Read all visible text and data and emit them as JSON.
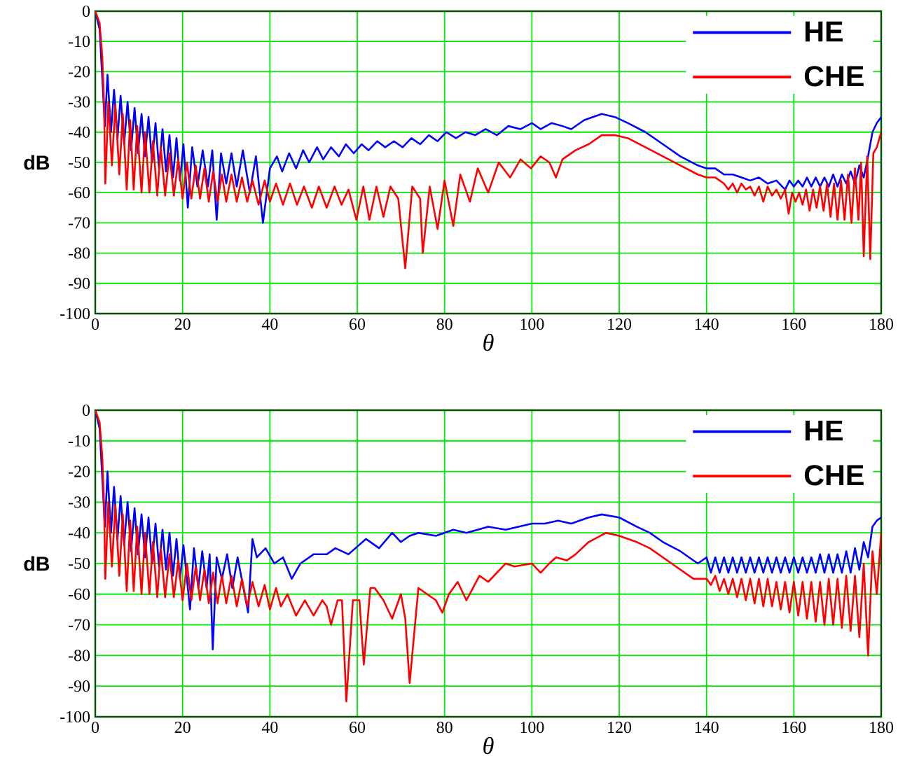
{
  "chart_data": [
    {
      "type": "line",
      "xlabel": "θ",
      "ylabel": "dB",
      "xlim": [
        0,
        180
      ],
      "ylim": [
        -100,
        0
      ],
      "xticks": [
        0,
        20,
        40,
        60,
        80,
        100,
        120,
        140,
        160,
        180
      ],
      "yticks": [
        -100,
        -90,
        -80,
        -70,
        -60,
        -50,
        -40,
        -30,
        -20,
        -10,
        0
      ],
      "grid": true,
      "legend": "top right",
      "series": [
        {
          "name": "HE",
          "color": "#0000ff",
          "x": [
            0,
            1,
            1.6,
            2.2,
            2.8,
            3.6,
            4.3,
            5.1,
            5.8,
            6.6,
            7.4,
            8.2,
            9,
            9.8,
            10.6,
            11.4,
            12.2,
            13,
            13.8,
            14.6,
            15.4,
            16.2,
            17,
            17.8,
            18.6,
            19.4,
            20.2,
            21.2,
            22.2,
            23.4,
            24.6,
            25.8,
            26.8,
            27.8,
            28.8,
            30,
            31.2,
            32.4,
            33.8,
            35.4,
            36.8,
            38.4,
            40,
            41.6,
            42.8,
            44.4,
            46,
            47.6,
            49,
            50.8,
            52.2,
            54,
            55.8,
            57.4,
            59.2,
            61,
            62.6,
            64.6,
            66.4,
            68.4,
            70.4,
            72.4,
            74.4,
            76.4,
            78.4,
            80.4,
            82.6,
            84.8,
            87,
            89.4,
            92,
            94.6,
            97.4,
            100,
            102,
            104.5,
            107,
            109,
            112,
            116,
            119,
            122,
            126,
            130,
            134,
            138,
            140,
            142,
            144,
            146,
            148,
            150,
            152,
            154,
            156,
            158,
            159,
            160,
            161,
            162,
            163,
            164,
            165,
            166,
            167,
            168,
            169,
            170,
            171,
            172,
            173,
            174,
            175,
            176,
            177,
            178,
            179,
            180
          ],
          "values": [
            0,
            -6,
            -22,
            -38,
            -21,
            -40,
            -26,
            -42,
            -28,
            -44,
            -30,
            -46,
            -32,
            -47,
            -34,
            -48,
            -35,
            -50,
            -37,
            -52,
            -39,
            -53,
            -41,
            -55,
            -42,
            -56,
            -44,
            -65,
            -45,
            -58,
            -46,
            -58,
            -46,
            -69,
            -47,
            -57,
            -47,
            -58,
            -46,
            -60,
            -48,
            -70,
            -52,
            -48,
            -53,
            -47,
            -52,
            -46,
            -50,
            -45,
            -49,
            -45,
            -48,
            -44,
            -47,
            -44,
            -46,
            -43,
            -45,
            -43,
            -45,
            -42,
            -44,
            -41,
            -43,
            -40,
            -42,
            -40,
            -41,
            -39,
            -41,
            -38,
            -39,
            -37,
            -39,
            -37,
            -38,
            -39,
            -36,
            -34,
            -35,
            -37,
            -40,
            -44,
            -48,
            -51,
            -52,
            -52,
            -54,
            -54,
            -55,
            -56,
            -55,
            -57,
            -56,
            -59,
            -56,
            -58,
            -56,
            -58,
            -55,
            -58,
            -55,
            -58,
            -55,
            -58,
            -54,
            -58,
            -54,
            -57,
            -53,
            -57,
            -51,
            -55,
            -48,
            -40,
            -37,
            -35
          ]
        },
        {
          "name": "CHE",
          "color": "#ff0000",
          "x": [
            0,
            1,
            1.6,
            2,
            2.3,
            3,
            3.8,
            4.6,
            5.5,
            6.3,
            7.2,
            8,
            8.8,
            9.6,
            10.6,
            11.4,
            12.4,
            13.2,
            14.2,
            15,
            16,
            17,
            18,
            19,
            20,
            21,
            22,
            23,
            24,
            25,
            26,
            27,
            28,
            29,
            30,
            31.2,
            32.4,
            33.6,
            34.8,
            36,
            37.4,
            38.8,
            40,
            41.4,
            43,
            44.6,
            46.2,
            47.8,
            49.6,
            51.2,
            53,
            54.8,
            56.4,
            58,
            59.8,
            61.4,
            62.8,
            64.4,
            66,
            67.6,
            69.4,
            71,
            72.6,
            74.4,
            75,
            76.6,
            78.4,
            80,
            82,
            83.6,
            85.8,
            87.6,
            90,
            92.4,
            95,
            97.4,
            99.8,
            102,
            104,
            105.5,
            107,
            110,
            113,
            116,
            119,
            122,
            126,
            130,
            134,
            138,
            140,
            142,
            144,
            145,
            146,
            147,
            148,
            149,
            150,
            151,
            152,
            153,
            154,
            155,
            156,
            157,
            158,
            158.8,
            159.6,
            160.4,
            161.2,
            162,
            162.8,
            163.6,
            164.4,
            165.2,
            166,
            166.8,
            167.6,
            168.4,
            169.2,
            170,
            170.8,
            171.6,
            172.4,
            173.2,
            174,
            174.8,
            175.4,
            176,
            176.8,
            177.5,
            178.2,
            179,
            180
          ],
          "values": [
            0,
            -4,
            -15,
            -30,
            -57,
            -30,
            -51,
            -31,
            -54,
            -34,
            -59,
            -36,
            -59,
            -38,
            -60,
            -40,
            -60,
            -43,
            -61,
            -45,
            -61,
            -47,
            -61,
            -49,
            -62,
            -50,
            -62,
            -51,
            -62,
            -52,
            -63,
            -53,
            -63,
            -54,
            -63,
            -54,
            -63,
            -55,
            -63,
            -56,
            -64,
            -56,
            -63,
            -57,
            -64,
            -57,
            -64,
            -58,
            -65,
            -58,
            -65,
            -58,
            -64,
            -59,
            -69,
            -58,
            -69,
            -58,
            -68,
            -58,
            -62,
            -85,
            -58,
            -62,
            -80,
            -58,
            -72,
            -56,
            -71,
            -54,
            -63,
            -52,
            -60,
            -50,
            -55,
            -49,
            -52,
            -48,
            -50,
            -55,
            -49,
            -46,
            -44,
            -41,
            -41,
            -42,
            -45,
            -48,
            -51,
            -54,
            -55,
            -55,
            -57,
            -59,
            -57,
            -60,
            -57,
            -59,
            -58,
            -61,
            -58,
            -63,
            -58,
            -61,
            -59,
            -62,
            -59,
            -67,
            -60,
            -63,
            -60,
            -64,
            -59,
            -66,
            -59,
            -65,
            -58,
            -66,
            -57,
            -68,
            -57,
            -69,
            -56,
            -69,
            -54,
            -70,
            -52,
            -69,
            -50,
            -81,
            -48,
            -82,
            -47,
            -45,
            -40
          ]
        }
      ]
    },
    {
      "type": "line",
      "xlabel": "θ",
      "ylabel": "dB",
      "xlim": [
        0,
        180
      ],
      "ylim": [
        -100,
        0
      ],
      "xticks": [
        0,
        20,
        40,
        60,
        80,
        100,
        120,
        140,
        160,
        180
      ],
      "yticks": [
        -100,
        -90,
        -80,
        -70,
        -60,
        -50,
        -40,
        -30,
        -20,
        -10,
        0
      ],
      "grid": true,
      "legend": "top right",
      "series": [
        {
          "name": "HE",
          "color": "#0000ff",
          "x": [
            0,
            1,
            1.6,
            2.2,
            2.8,
            3.6,
            4.3,
            5.1,
            5.8,
            6.6,
            7.4,
            8.2,
            9,
            9.8,
            10.6,
            11.4,
            12.2,
            13,
            13.8,
            14.6,
            15.4,
            16.2,
            17,
            17.8,
            18.6,
            19.4,
            20.2,
            21.7,
            22.6,
            23.6,
            24.5,
            25.5,
            26.2,
            26.9,
            27.8,
            29,
            30.2,
            31.4,
            32.6,
            35,
            36,
            37,
            39,
            41,
            43,
            45,
            47,
            50,
            53,
            55,
            58,
            62,
            65,
            68,
            70,
            72,
            74,
            78,
            82,
            85,
            90,
            94,
            100,
            103,
            106,
            109,
            113,
            116,
            120,
            124,
            127,
            130,
            134,
            138,
            140,
            141,
            142,
            143,
            144,
            145,
            146,
            147,
            148,
            149,
            150,
            151,
            152,
            153,
            154,
            155,
            156,
            157,
            158,
            159,
            160,
            161,
            162,
            163,
            164,
            165,
            166,
            167,
            168,
            169,
            170,
            171,
            172,
            173,
            174,
            175,
            176,
            177,
            178,
            179,
            180
          ],
          "values": [
            0,
            -6,
            -22,
            -38,
            -20,
            -40,
            -25,
            -42,
            -28,
            -44,
            -30,
            -46,
            -32,
            -47,
            -34,
            -48,
            -35,
            -50,
            -37,
            -51,
            -39,
            -52,
            -40,
            -54,
            -42,
            -55,
            -44,
            -65,
            -45,
            -58,
            -46,
            -58,
            -47,
            -78,
            -48,
            -55,
            -47,
            -58,
            -48,
            -66,
            -42,
            -48,
            -45,
            -50,
            -48,
            -55,
            -50,
            -47,
            -47,
            -45,
            -47,
            -42,
            -45,
            -40,
            -43,
            -41,
            -40,
            -41,
            -39,
            -40,
            -38,
            -39,
            -37,
            -37,
            -36,
            -37,
            -35,
            -34,
            -35,
            -38,
            -40,
            -43,
            -46,
            -50,
            -48,
            -53,
            -48,
            -53,
            -48,
            -53,
            -48,
            -53,
            -48,
            -53,
            -48,
            -53,
            -48,
            -53,
            -48,
            -53,
            -48,
            -53,
            -48,
            -53,
            -48,
            -53,
            -48,
            -53,
            -48,
            -53,
            -47,
            -53,
            -47,
            -53,
            -47,
            -53,
            -46,
            -53,
            -45,
            -52,
            -43,
            -48,
            -38,
            -36,
            -35
          ]
        },
        {
          "name": "CHE",
          "color": "#ff0000",
          "x": [
            0,
            1,
            1.6,
            2,
            2.3,
            3,
            3.8,
            4.6,
            5.5,
            6.3,
            7.2,
            8,
            8.8,
            9.6,
            10.6,
            11.4,
            12.4,
            13.2,
            14.2,
            15,
            16,
            17,
            18,
            19,
            20,
            21,
            22,
            23,
            24,
            25,
            26,
            27,
            28,
            29,
            30,
            31.2,
            32.4,
            33.6,
            34.8,
            36,
            37.4,
            38.8,
            40,
            41.4,
            42.5,
            44,
            46,
            48,
            50,
            52,
            53,
            54,
            55.5,
            56.5,
            57.5,
            59,
            60.5,
            61.5,
            63,
            64,
            66,
            68,
            70,
            71,
            72,
            74,
            76,
            78,
            79.5,
            81,
            83,
            85,
            88,
            90,
            94,
            96,
            100,
            102,
            104,
            105.5,
            108,
            110,
            113,
            117,
            120,
            124,
            127,
            132,
            137,
            140,
            141,
            142,
            143,
            144,
            145,
            146,
            147,
            148,
            149,
            150,
            151,
            152,
            153,
            154,
            155,
            156,
            157,
            158,
            159,
            160,
            161,
            162,
            163,
            164,
            165,
            166,
            167,
            168,
            169,
            170,
            171,
            172,
            173,
            174,
            175,
            176,
            177,
            178,
            179,
            180
          ],
          "values": [
            0,
            -4,
            -15,
            -30,
            -55,
            -30,
            -51,
            -31,
            -54,
            -34,
            -59,
            -36,
            -59,
            -38,
            -60,
            -40,
            -60,
            -43,
            -61,
            -45,
            -61,
            -47,
            -61,
            -49,
            -62,
            -50,
            -62,
            -51,
            -62,
            -52,
            -63,
            -53,
            -63,
            -54,
            -63,
            -54,
            -64,
            -55,
            -64,
            -56,
            -64,
            -57,
            -65,
            -58,
            -64,
            -60,
            -67,
            -62,
            -67,
            -62,
            -64,
            -70,
            -62,
            -62,
            -95,
            -62,
            -62,
            -83,
            -58,
            -58,
            -62,
            -68,
            -60,
            -68,
            -89,
            -58,
            -60,
            -62,
            -66,
            -60,
            -56,
            -62,
            -54,
            -56,
            -50,
            -51,
            -50,
            -53,
            -50,
            -48,
            -49,
            -47,
            -43,
            -40,
            -41,
            -43,
            -45,
            -50,
            -55,
            -55,
            -57,
            -54,
            -59,
            -55,
            -60,
            -55,
            -61,
            -55,
            -62,
            -55,
            -63,
            -55,
            -64,
            -55,
            -64,
            -56,
            -65,
            -56,
            -66,
            -56,
            -67,
            -56,
            -68,
            -56,
            -69,
            -56,
            -70,
            -55,
            -70,
            -55,
            -71,
            -54,
            -72,
            -54,
            -74,
            -50,
            -80,
            -46,
            -60,
            -40
          ]
        }
      ]
    }
  ]
}
